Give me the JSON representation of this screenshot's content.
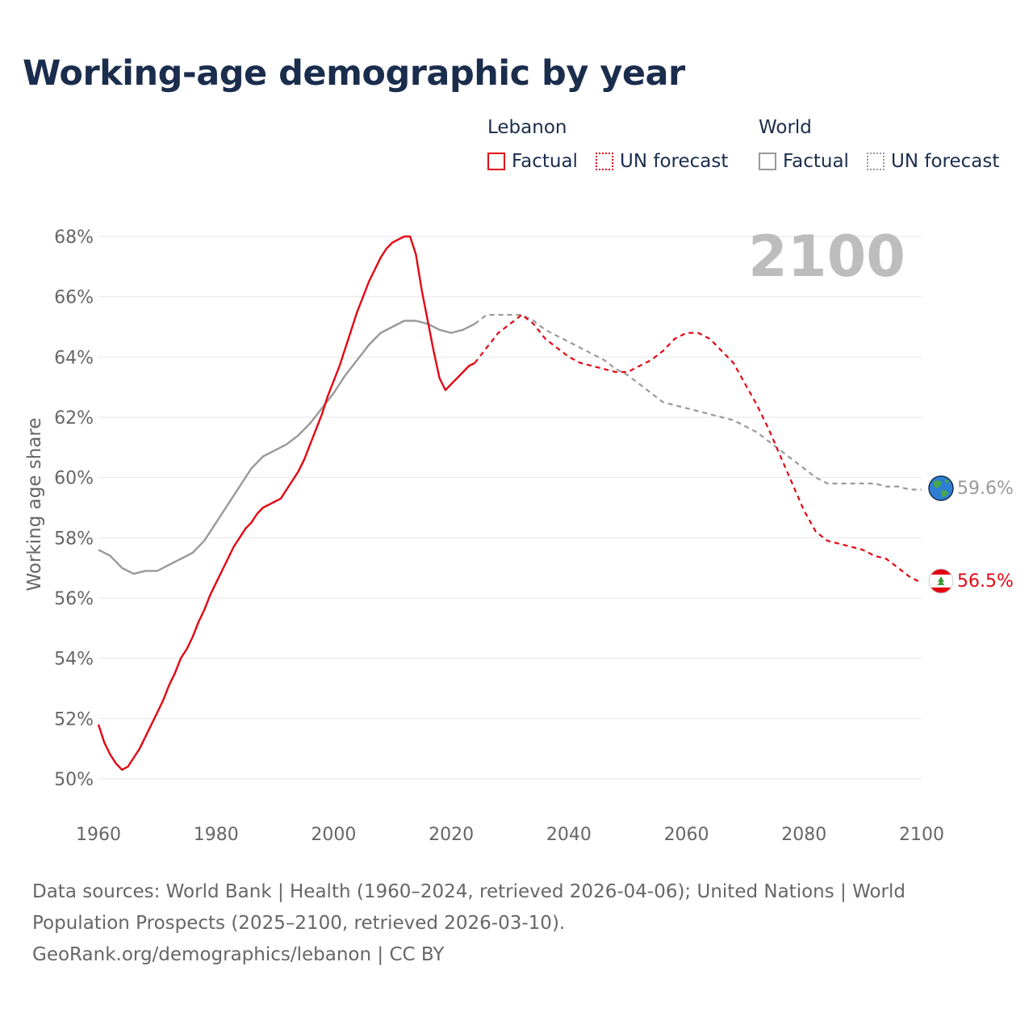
{
  "title": "Working-age demographic by year",
  "legend": {
    "groups": [
      {
        "name": "Lebanon",
        "factual_label": "Factual",
        "forecast_label": "UN forecast",
        "color": "#e30613"
      },
      {
        "name": "World",
        "factual_label": "Factual",
        "forecast_label": "UN forecast",
        "color": "#999999"
      }
    ]
  },
  "year_badge": "2100",
  "end_labels": {
    "world": "59.6%",
    "lebanon": "56.5%"
  },
  "footer": {
    "line1": "Data sources: World Bank | Health (1960–2024, retrieved 2026-04-06); United Nations | World",
    "line2": "Population Prospects (2025–2100, retrieved 2026-03-10).",
    "line3": "GeoRank.org/demographics/lebanon | CC BY"
  },
  "chart_data": {
    "type": "line",
    "title": "Working-age demographic by year",
    "xlabel": "",
    "ylabel": "Working age share",
    "xlim": [
      1960,
      2100
    ],
    "ylim": [
      50,
      68
    ],
    "x_ticks": [
      1960,
      1980,
      2000,
      2020,
      2040,
      2060,
      2080,
      2100
    ],
    "y_ticks": [
      50,
      52,
      54,
      56,
      58,
      60,
      62,
      64,
      66,
      68
    ],
    "y_tick_labels": [
      "50%",
      "52%",
      "54%",
      "56%",
      "58%",
      "60%",
      "62%",
      "64%",
      "66%",
      "68%"
    ],
    "grid": true,
    "series": [
      {
        "name": "Lebanon",
        "color": "#e30613",
        "factual": {
          "x": [
            1960,
            1961,
            1962,
            1963,
            1964,
            1965,
            1966,
            1967,
            1968,
            1969,
            1970,
            1971,
            1972,
            1973,
            1974,
            1975,
            1976,
            1977,
            1978,
            1979,
            1980,
            1981,
            1982,
            1983,
            1984,
            1985,
            1986,
            1987,
            1988,
            1989,
            1990,
            1991,
            1992,
            1993,
            1994,
            1995,
            1996,
            1997,
            1998,
            1999,
            2000,
            2001,
            2002,
            2003,
            2004,
            2005,
            2006,
            2007,
            2008,
            2009,
            2010,
            2011,
            2012,
            2013,
            2014,
            2015,
            2016,
            2017,
            2018,
            2019,
            2020,
            2021,
            2022,
            2023,
            2024
          ],
          "y": [
            51.8,
            51.2,
            50.8,
            50.5,
            50.3,
            50.4,
            50.7,
            51.0,
            51.4,
            51.8,
            52.2,
            52.6,
            53.1,
            53.5,
            54.0,
            54.3,
            54.7,
            55.2,
            55.6,
            56.1,
            56.5,
            56.9,
            57.3,
            57.7,
            58.0,
            58.3,
            58.5,
            58.8,
            59.0,
            59.1,
            59.2,
            59.3,
            59.6,
            59.9,
            60.2,
            60.6,
            61.1,
            61.6,
            62.1,
            62.7,
            63.2,
            63.7,
            64.3,
            64.9,
            65.5,
            66.0,
            66.5,
            66.9,
            67.3,
            67.6,
            67.8,
            67.9,
            68.0,
            68.0,
            67.4,
            66.2,
            65.2,
            64.2,
            63.3,
            62.9,
            63.1,
            63.3,
            63.5,
            63.7,
            63.8
          ],
          "end_year": 2024
        },
        "forecast": {
          "x": [
            2024,
            2026,
            2028,
            2030,
            2032,
            2034,
            2036,
            2038,
            2040,
            2042,
            2044,
            2046,
            2048,
            2050,
            2052,
            2054,
            2056,
            2058,
            2060,
            2062,
            2064,
            2066,
            2068,
            2070,
            2072,
            2074,
            2076,
            2078,
            2080,
            2082,
            2084,
            2086,
            2088,
            2090,
            2092,
            2094,
            2096,
            2098,
            2100
          ],
          "y": [
            63.8,
            64.3,
            64.8,
            65.1,
            65.4,
            65.1,
            64.6,
            64.3,
            64.0,
            63.8,
            63.7,
            63.6,
            63.5,
            63.5,
            63.7,
            63.9,
            64.2,
            64.6,
            64.8,
            64.8,
            64.6,
            64.2,
            63.8,
            63.1,
            62.4,
            61.6,
            60.7,
            59.8,
            58.9,
            58.2,
            57.9,
            57.8,
            57.7,
            57.6,
            57.4,
            57.3,
            57.0,
            56.7,
            56.5
          ]
        },
        "end_value_label": "56.5%"
      },
      {
        "name": "World",
        "color": "#999999",
        "factual": {
          "x": [
            1960,
            1962,
            1964,
            1966,
            1968,
            1970,
            1972,
            1974,
            1976,
            1978,
            1980,
            1982,
            1984,
            1986,
            1988,
            1990,
            1992,
            1994,
            1996,
            1998,
            2000,
            2002,
            2004,
            2006,
            2008,
            2010,
            2012,
            2014,
            2016,
            2018,
            2020,
            2022,
            2024
          ],
          "y": [
            57.6,
            57.4,
            57.0,
            56.8,
            56.9,
            56.9,
            57.1,
            57.3,
            57.5,
            57.9,
            58.5,
            59.1,
            59.7,
            60.3,
            60.7,
            60.9,
            61.1,
            61.4,
            61.8,
            62.3,
            62.8,
            63.4,
            63.9,
            64.4,
            64.8,
            65.0,
            65.2,
            65.2,
            65.1,
            64.9,
            64.8,
            64.9,
            65.1
          ],
          "end_year": 2024
        },
        "forecast": {
          "x": [
            2024,
            2026,
            2028,
            2030,
            2032,
            2034,
            2036,
            2038,
            2040,
            2042,
            2044,
            2046,
            2048,
            2050,
            2052,
            2054,
            2056,
            2058,
            2060,
            2062,
            2064,
            2066,
            2068,
            2070,
            2072,
            2074,
            2076,
            2078,
            2080,
            2082,
            2084,
            2086,
            2088,
            2090,
            2092,
            2094,
            2096,
            2098,
            2100
          ],
          "y": [
            65.1,
            65.4,
            65.4,
            65.4,
            65.4,
            65.2,
            64.9,
            64.7,
            64.5,
            64.3,
            64.1,
            63.9,
            63.6,
            63.4,
            63.1,
            62.8,
            62.5,
            62.4,
            62.3,
            62.2,
            62.1,
            62.0,
            61.9,
            61.7,
            61.5,
            61.2,
            60.9,
            60.6,
            60.3,
            60.0,
            59.8,
            59.8,
            59.8,
            59.8,
            59.8,
            59.7,
            59.7,
            59.6,
            59.6
          ]
        },
        "end_value_label": "59.6%"
      }
    ]
  }
}
